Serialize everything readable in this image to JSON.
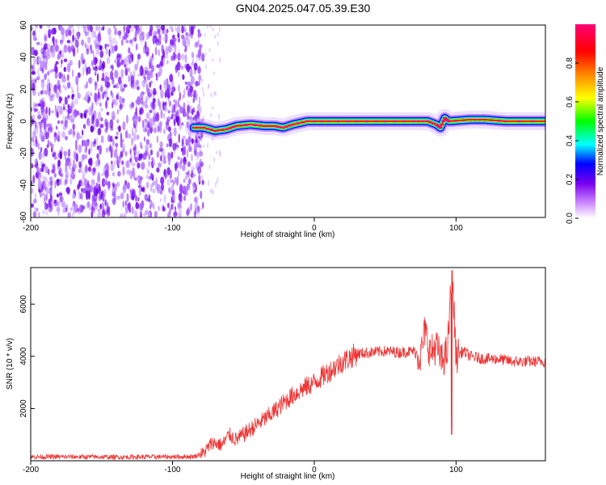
{
  "title": "GN04.2025.047.05.39.E30",
  "chart_data": [
    {
      "type": "heatmap",
      "title": "",
      "xlabel": "Height of straight line (km)",
      "ylabel": "Frequency (Hz)",
      "xlim": [
        -200,
        163
      ],
      "ylim": [
        -60,
        60
      ],
      "xticks": [
        -200,
        -100,
        0,
        100
      ],
      "yticks": [
        -60,
        -40,
        -20,
        0,
        20,
        40,
        60
      ],
      "colorbar": {
        "label": "Normalized spectral amplitude",
        "range": [
          0,
          1
        ],
        "ticks": [
          "0.0",
          "0.2",
          "0.4",
          "0.6",
          "0.8"
        ],
        "colors": [
          "#ffffff",
          "#cc88ff",
          "#7700ee",
          "#0000ff",
          "#00ffff",
          "#00ff00",
          "#ffff00",
          "#ff8800",
          "#ff0000",
          "#ff0077"
        ]
      },
      "noise_region_x": [
        -200,
        -83
      ],
      "ridge": [
        [
          -85,
          -4
        ],
        [
          -78,
          -4
        ],
        [
          -70,
          -6
        ],
        [
          -62,
          -5
        ],
        [
          -55,
          -3
        ],
        [
          -45,
          -2
        ],
        [
          -35,
          -3
        ],
        [
          -28,
          -3
        ],
        [
          -22,
          -4
        ],
        [
          -15,
          -2
        ],
        [
          -5,
          0
        ],
        [
          10,
          0
        ],
        [
          30,
          0
        ],
        [
          50,
          0
        ],
        [
          70,
          0
        ],
        [
          80,
          0
        ],
        [
          86,
          -2
        ],
        [
          89,
          -4
        ],
        [
          92,
          2
        ],
        [
          95,
          0
        ],
        [
          110,
          1
        ],
        [
          120,
          1
        ],
        [
          135,
          0
        ],
        [
          163,
          0
        ]
      ]
    },
    {
      "type": "line",
      "title": "",
      "xlabel": "Height of straight line (km)",
      "ylabel": "SNR (10 * v/v)",
      "xlim": [
        -200,
        163
      ],
      "ylim": [
        0,
        7400
      ],
      "xticks": [
        -200,
        -100,
        0,
        100
      ],
      "yticks": [
        2000,
        4000,
        6000
      ],
      "color": "#ee3333",
      "series": [
        {
          "name": "",
          "x": [
            -200,
            -180,
            -160,
            -140,
            -120,
            -100,
            -85,
            -78,
            -72,
            -65,
            -60,
            -55,
            -50,
            -40,
            -30,
            -20,
            -10,
            0,
            10,
            20,
            30,
            40,
            50,
            60,
            70,
            75,
            78,
            82,
            86,
            90,
            94,
            97,
            100,
            105,
            110,
            120,
            130,
            140,
            150,
            163
          ],
          "y": [
            150,
            150,
            150,
            140,
            150,
            150,
            160,
            300,
            700,
            600,
            1000,
            800,
            1000,
            1400,
            1800,
            2300,
            2700,
            3000,
            3400,
            3800,
            4100,
            4150,
            4200,
            4150,
            4200,
            4000,
            5000,
            4100,
            4400,
            3800,
            4200,
            7300,
            4000,
            4200,
            4000,
            3900,
            3900,
            3800,
            3800,
            3800
          ]
        }
      ]
    }
  ]
}
